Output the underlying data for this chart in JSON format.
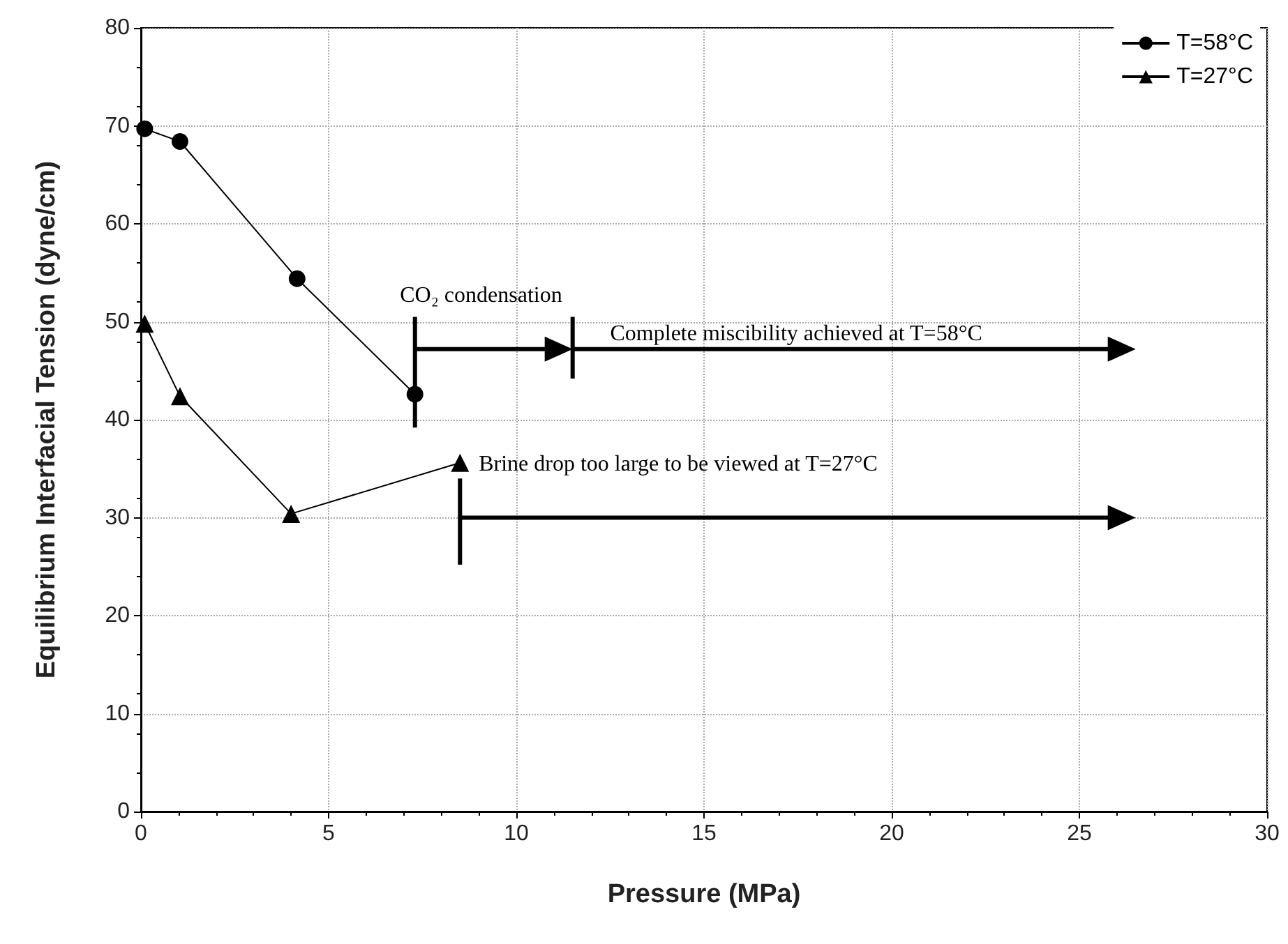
{
  "chart_data": {
    "type": "line",
    "xlabel": "Pressure (MPa)",
    "ylabel": "Equilibrium Interfacial Tension (dyne/cm)",
    "series": [
      {
        "name": "T=58°C",
        "color": "#000000",
        "marker": "circle",
        "x": [
          0.1,
          1.04,
          4.16,
          7.3
        ],
        "values": [
          69.7,
          68.4,
          54.4,
          42.6
        ]
      },
      {
        "name": "T=27°C",
        "color": "#000000",
        "marker": "triangle",
        "x": [
          0.1,
          1.04,
          4.0,
          8.5
        ],
        "values": [
          49.8,
          42.4,
          30.4,
          35.6
        ]
      }
    ],
    "annotations": [
      "CO₂ condensation",
      "Complete miscibility achieved at T=58°C",
      "Brine drop too large to be viewed at T=27°C"
    ],
    "xlim": [
      0,
      30
    ],
    "xticks": [
      0,
      5,
      10,
      15,
      20,
      25,
      30
    ],
    "ylim": [
      0,
      80
    ],
    "yticks": [
      0,
      10,
      20,
      30,
      40,
      50,
      60,
      70,
      80
    ],
    "grid": true,
    "legend": "top right",
    "line_style": "solid"
  }
}
